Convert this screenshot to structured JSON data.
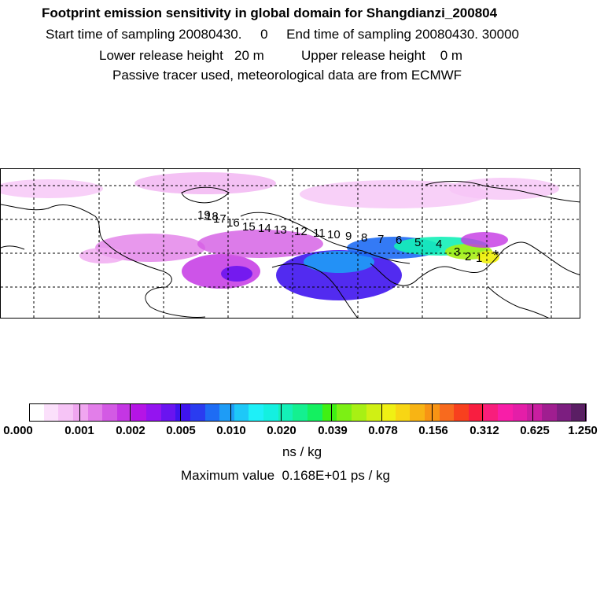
{
  "header": {
    "title": "Footprint emission sensitivity in global domain for Shangdianzi_200804",
    "sampling_line": "Start time of sampling 20080430.     0     End time of sampling 20080430. 30000",
    "height_line": "Lower release height   20 m          Upper release height    0 m",
    "tracer_line": "Passive tracer used, meteorological data are from ECMWF"
  },
  "map": {
    "day_labels": [
      "1",
      "2",
      "3",
      "4",
      "5",
      "6",
      "7",
      "8",
      "9",
      "10",
      "11",
      "12",
      "13",
      "14",
      "15",
      "16",
      "17",
      "18",
      "19"
    ],
    "release_marker": "*"
  },
  "colorbar": {
    "tick_labels": [
      "0.000",
      "0.001",
      "0.002",
      "0.005",
      "0.010",
      "0.020",
      "0.039",
      "0.078",
      "0.156",
      "0.312",
      "0.625",
      "1.250"
    ],
    "colors": [
      "#ffffff",
      "#fbe0fb",
      "#f6c4f6",
      "#f0a6f0",
      "#e27ee9",
      "#d35ae4",
      "#c436e4",
      "#b514e6",
      "#9414f0",
      "#6a14f0",
      "#3f14ee",
      "#2a3cf0",
      "#1e6cf4",
      "#1e9cf6",
      "#1ec8f8",
      "#1ef0f8",
      "#14f0e0",
      "#14f0b8",
      "#14f090",
      "#14f060",
      "#40f014",
      "#7cf014",
      "#a8f014",
      "#d0f014",
      "#f0f014",
      "#f8d614",
      "#f8b414",
      "#f89414",
      "#f86a1e",
      "#f8401e",
      "#f81e40",
      "#f81e7c",
      "#f81ea8",
      "#e41ea8",
      "#c81ea0",
      "#a01e90",
      "#7c1e80",
      "#5a1e64"
    ],
    "units": "ns / kg",
    "max_value": "Maximum value  0.168E+01 ps / kg"
  }
}
